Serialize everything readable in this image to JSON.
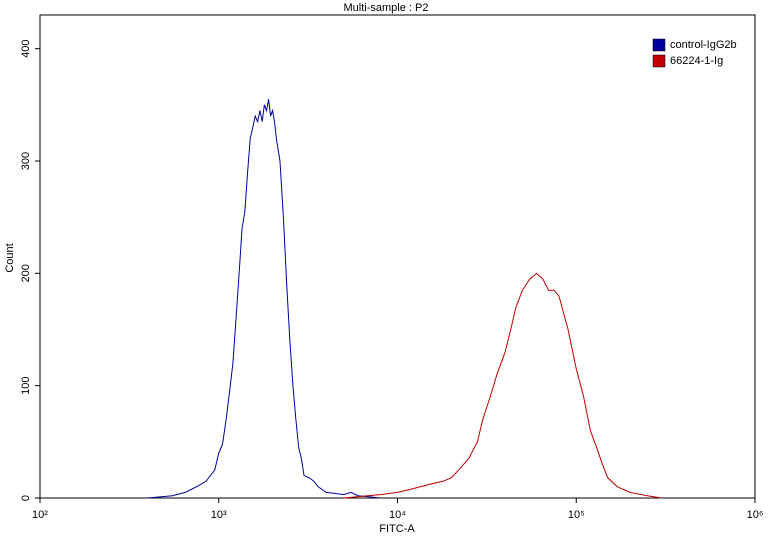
{
  "chart_data": {
    "type": "line",
    "title": "Multi-sample : P2",
    "x_label": "FITC-A",
    "y_label": "Count",
    "xscale": "log",
    "xlim": [
      100,
      1000000
    ],
    "xticks": [
      {
        "value": 100,
        "label": "10²"
      },
      {
        "value": 1000,
        "label": "10³"
      },
      {
        "value": 10000,
        "label": "10⁴"
      },
      {
        "value": 100000,
        "label": "10⁵"
      },
      {
        "value": 1000000,
        "label": "10⁶"
      }
    ],
    "ylim": [
      0,
      430
    ],
    "yticks": [
      0,
      100,
      200,
      300,
      400
    ],
    "legend": "top-right",
    "series": [
      {
        "name": "control-IgG2b",
        "color": "#0000a0",
        "x": [
          400,
          550,
          650,
          750,
          850,
          950,
          1000,
          1050,
          1100,
          1150,
          1200,
          1250,
          1300,
          1350,
          1400,
          1450,
          1500,
          1550,
          1600,
          1650,
          1700,
          1750,
          1800,
          1850,
          1900,
          1950,
          2000,
          2050,
          2100,
          2200,
          2300,
          2400,
          2500,
          2600,
          2700,
          2800,
          2900,
          3000,
          3200,
          3400,
          3600,
          4000,
          4500,
          5000,
          5500,
          6000,
          7000,
          8000
        ],
        "values": [
          0,
          2,
          5,
          10,
          15,
          25,
          40,
          48,
          70,
          95,
          120,
          160,
          200,
          240,
          255,
          290,
          320,
          330,
          340,
          335,
          345,
          335,
          350,
          345,
          355,
          340,
          345,
          335,
          320,
          300,
          250,
          190,
          140,
          100,
          70,
          45,
          35,
          20,
          18,
          15,
          10,
          5,
          4,
          3,
          5,
          2,
          1,
          0
        ]
      },
      {
        "name": "66224-1-Ig",
        "color": "#c00000",
        "x": [
          5000,
          8000,
          10000,
          12000,
          15000,
          18000,
          20000,
          22000,
          25000,
          28000,
          30000,
          33000,
          36000,
          40000,
          43000,
          46000,
          50000,
          55000,
          60000,
          65000,
          70000,
          75000,
          80000,
          90000,
          100000,
          110000,
          120000,
          130000,
          140000,
          150000,
          170000,
          200000,
          250000,
          300000
        ],
        "values": [
          0,
          3,
          5,
          8,
          12,
          15,
          18,
          25,
          35,
          50,
          70,
          90,
          110,
          130,
          150,
          170,
          185,
          195,
          200,
          195,
          185,
          185,
          180,
          150,
          115,
          90,
          60,
          45,
          30,
          18,
          10,
          5,
          2,
          0
        ]
      }
    ]
  }
}
